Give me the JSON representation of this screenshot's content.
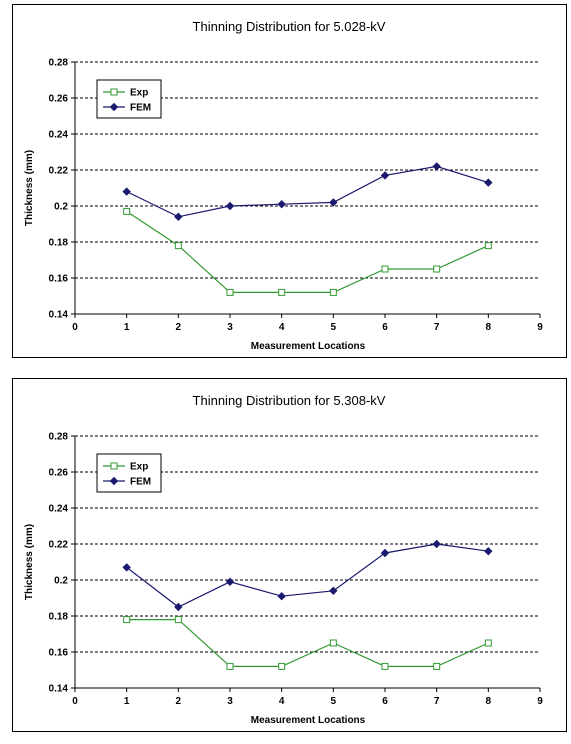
{
  "chart_data": [
    {
      "type": "line",
      "title": "Thinning Distribution for 5.028-kV",
      "xlabel": "Measurement Locations",
      "ylabel": "Thickness (mm)",
      "xlim": [
        0,
        9
      ],
      "ylim": [
        0.14,
        0.28
      ],
      "xticks": [
        0,
        1,
        2,
        3,
        4,
        5,
        6,
        7,
        8,
        9
      ],
      "yticks": [
        0.14,
        0.16,
        0.18,
        0.2,
        0.22,
        0.24,
        0.26,
        0.28
      ],
      "ytick_labels": [
        "0.14",
        "0.16",
        "0.18",
        "0.2",
        "0.22",
        "0.24",
        "0.26",
        "0.28"
      ],
      "grid": "horizontal dashed",
      "legend_position": "top-left",
      "x": [
        1,
        2,
        3,
        4,
        5,
        6,
        7,
        8
      ],
      "series": [
        {
          "name": "Exp",
          "color": "#339933",
          "marker": "hollow-square",
          "values": [
            0.197,
            0.178,
            0.152,
            0.152,
            0.152,
            0.165,
            0.165,
            0.178
          ]
        },
        {
          "name": "FEM",
          "color": "#1a1a6e",
          "marker": "filled-diamond",
          "values": [
            0.208,
            0.194,
            0.2,
            0.201,
            0.202,
            0.217,
            0.222,
            0.213
          ]
        }
      ]
    },
    {
      "type": "line",
      "title": "Thinning Distribution for 5.308-kV",
      "xlabel": "Measurement Locations",
      "ylabel": "Thickness (mm)",
      "xlim": [
        0,
        9
      ],
      "ylim": [
        0.14,
        0.28
      ],
      "xticks": [
        0,
        1,
        2,
        3,
        4,
        5,
        6,
        7,
        8,
        9
      ],
      "yticks": [
        0.14,
        0.16,
        0.18,
        0.2,
        0.22,
        0.24,
        0.26,
        0.28
      ],
      "ytick_labels": [
        "0.14",
        "0.16",
        "0.18",
        "0.2",
        "0.22",
        "0.24",
        "0.26",
        "0.28"
      ],
      "grid": "horizontal dashed",
      "legend_position": "top-left",
      "x": [
        1,
        2,
        3,
        4,
        5,
        6,
        7,
        8
      ],
      "series": [
        {
          "name": "Exp",
          "color": "#339933",
          "marker": "hollow-square",
          "values": [
            0.178,
            0.178,
            0.152,
            0.152,
            0.165,
            0.152,
            0.152,
            0.165
          ]
        },
        {
          "name": "FEM",
          "color": "#1a1a6e",
          "marker": "filled-diamond",
          "values": [
            0.207,
            0.185,
            0.199,
            0.191,
            0.194,
            0.215,
            0.22,
            0.216
          ]
        }
      ]
    }
  ]
}
